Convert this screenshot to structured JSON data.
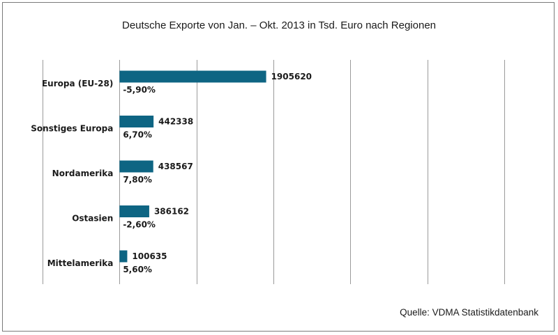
{
  "chart_data": {
    "type": "bar",
    "orientation": "horizontal",
    "title": "Deutsche Exporte von Jan. – Okt. 2013 in Tsd. Euro nach Regionen",
    "categories": [
      "Europa (EU-28)",
      "Sonstiges Europa",
      "Nordamerika",
      "Ostasien",
      "Mittelamerika"
    ],
    "values": [
      1905620,
      442338,
      438567,
      386162,
      100635
    ],
    "value_labels": [
      "1905620",
      "442338",
      "438567",
      "386162",
      "100635"
    ],
    "change_labels": [
      "-5,90%",
      "6,70%",
      "7,80%",
      "-2,60%",
      "5,60%"
    ],
    "xlim": [
      -1000000,
      5000000
    ],
    "gridlines": [
      -1000000,
      0,
      1000000,
      2000000,
      3000000,
      4000000,
      5000000
    ],
    "grid": true,
    "bar_color": "#0e6583",
    "source": "Quelle: VDMA Statistikdatenbank"
  }
}
